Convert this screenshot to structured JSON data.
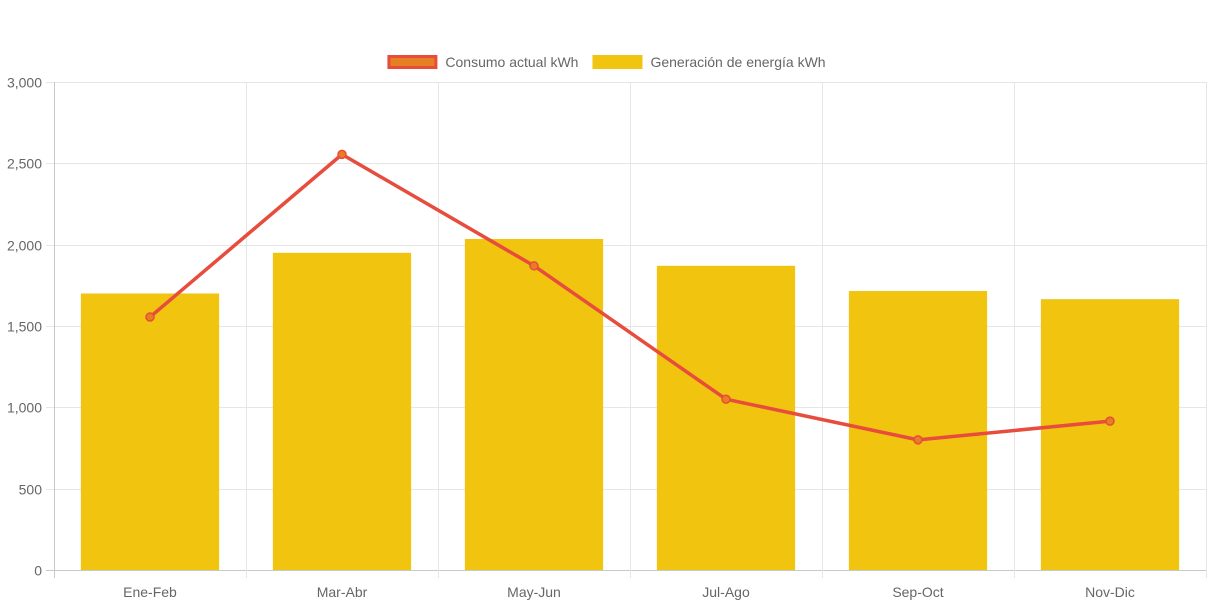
{
  "chart_data": {
    "type": "bar",
    "categories": [
      "Ene-Feb",
      "Mar-Abr",
      "May-Jun",
      "Jul-Ago",
      "Sep-Oct",
      "Nov-Dic"
    ],
    "series": [
      {
        "name": "Consumo actual kWh",
        "type": "line",
        "values": [
          1555,
          2555,
          1870,
          1050,
          800,
          915
        ],
        "color": "#e74c3c",
        "point_color": "#e67e22"
      },
      {
        "name": "Generación de energía kWh",
        "type": "bar",
        "values": [
          1700,
          1950,
          2035,
          1870,
          1715,
          1665
        ],
        "color": "#f1c40f"
      }
    ],
    "ylim": [
      0,
      3000
    ],
    "yticks": [
      0,
      500,
      1000,
      1500,
      2000,
      2500,
      3000
    ],
    "ytick_labels": [
      "0",
      "500",
      "1,000",
      "1,500",
      "2,000",
      "2,500",
      "3,000"
    ],
    "grid": true,
    "legend_position": "top-center"
  }
}
